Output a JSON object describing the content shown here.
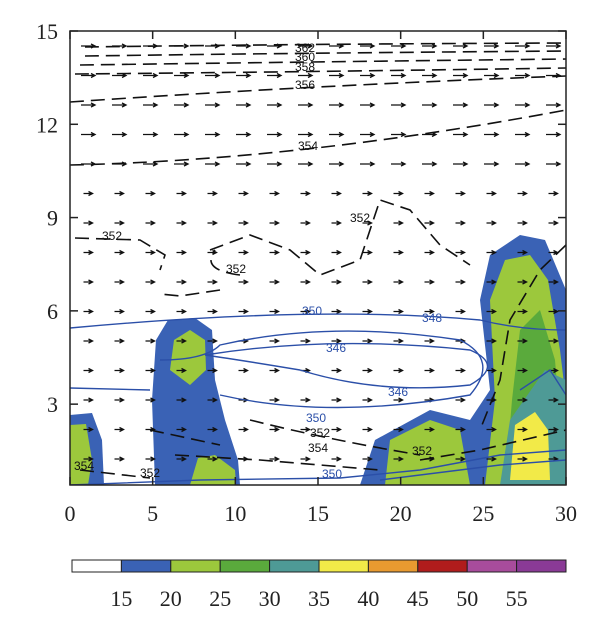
{
  "chart_data": {
    "type": "contour",
    "xlim": [
      0,
      30
    ],
    "xticks": [
      0,
      5,
      10,
      15,
      20,
      25,
      30
    ],
    "ylim": [
      0.4,
      15
    ],
    "yticks": [
      3,
      6,
      9,
      12,
      15
    ],
    "contour_labels": [
      362,
      360,
      358,
      356,
      354,
      352,
      352,
      352,
      350,
      348,
      346,
      346,
      350,
      352,
      354,
      350,
      354,
      352,
      352
    ],
    "colorbar": {
      "levels": [
        15,
        20,
        25,
        30,
        35,
        40,
        45,
        50,
        55
      ],
      "colors": [
        "#ffffff",
        "#3a62b5",
        "#9cc83c",
        "#5aaa3c",
        "#4e9a96",
        "#f2ea48",
        "#e89a30",
        "#b01c1c",
        "#a84c9c",
        "#8a3a96"
      ]
    }
  }
}
